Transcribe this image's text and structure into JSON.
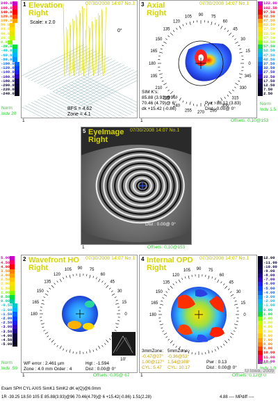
{
  "panels": {
    "elevation": {
      "num": "1",
      "title1": "Elevation",
      "title2": "Right",
      "date": "07/30/2008 14:07 No.1",
      "scale_label": "Scale: x 2.0",
      "zero_deg": "0°",
      "bfs": "BFS = 4.62",
      "zone": "Zone = 4.1",
      "norm": "Norm",
      "indv": "Indv 20",
      "bottom_num": "1",
      "scale_values": [
        "240.0",
        "160.0",
        "140.0",
        "120.0",
        "100.0",
        "80.0",
        "60.0",
        "40.0",
        "20.0",
        "0.0",
        "-20.0",
        "-40.0",
        "-60.0",
        "-80.0",
        "-100.0",
        "-120.0",
        "-140.0",
        "-160.0",
        "-180.0",
        "-200.0",
        "-220.0",
        "-240.0"
      ]
    },
    "axial": {
      "num": "3",
      "title1": "Axial",
      "title2": "Right",
      "date": "07/30/2008 14:07 No.1",
      "angles": [
        "90",
        "105",
        "75",
        "120",
        "60",
        "135",
        "45",
        "150",
        "30",
        "165",
        "15",
        "180",
        "0",
        "195",
        "345",
        "210",
        "330",
        "225",
        "315",
        "240",
        "300",
        "255",
        "270",
        "285"
      ],
      "sim_k": "SIM K's:",
      "k1": "85.88 (3.93)@96°",
      "k2": "70.46 (4.79)@ 6°",
      "dk": "dk +15.42 (-0.86)",
      "pwr": "Pwr : 88.12 (3.83)",
      "dist": "Dist : 0.00@ 0°",
      "norm": "Norm",
      "indv": "Indv 1.5",
      "offsets": "Offsets: 0.10@153",
      "bottom_num": "1",
      "scale_values": [
        "122.00",
        "102.50",
        "97.50",
        "92.50",
        "87.50",
        "82.50",
        "77.50",
        "72.50",
        "67.50",
        "62.50",
        "57.50",
        "52.50",
        "47.50",
        "42.50",
        "37.50",
        "32.50",
        "27.50",
        "22.50",
        "17.50",
        "12.50",
        "7.50",
        "2.50"
      ]
    },
    "eye": {
      "num": "5",
      "title1": "EyeImage",
      "title2": "Right",
      "date": "07/30/2008 14:07 No.1",
      "dist": "Dist : 0.00@ 0°",
      "offsets": "Offsets: 0.10@153",
      "bottom_num": "1"
    },
    "wavefront": {
      "num": "2",
      "title1": "Wavefront HO",
      "title2": "Right",
      "date": "07/30/2008 14:07 No.1",
      "wf_error": "WF error : 2.461 µm",
      "zone_order": "Zone : 4.0 mm Order : 4",
      "hgt": "Hgt : -1.594",
      "dist": "Dist : 0.00@ 0°",
      "thumb_label": "10'",
      "norm": "Norm",
      "indv": "Indv .50",
      "offsets": "Offsets: 0.05@ 67",
      "bottom_num": "1",
      "scale_values": [
        "5.00",
        "4.50",
        "4.00",
        "3.50",
        "3.00",
        "2.50",
        "2.00",
        "1.50",
        "1.00",
        "0.50",
        "0.00",
        "-0.50",
        "-1.00",
        "-1.50",
        "-2.00",
        "-2.50",
        "-3.00",
        "-3.50",
        "-4.00",
        "-4.50",
        "-5.00"
      ]
    },
    "internal": {
      "num": "4",
      "title1": "Internal OPD",
      "title2": "Right",
      "date": "07/30/2008 14:07 No.1",
      "zone3": "3mmZone:",
      "zone5": "5mmZone:",
      "z3a": "-0.47@27°",
      "z5a": "-0.36@53°",
      "z3b": "1.00@117°",
      "z5b": "1.54@108°",
      "z3c": "CYL: 5.47",
      "z5c": "CYL: 10.17",
      "pwr": "Pwr : 0.13",
      "dist": "Dist : 0.00@ 0°",
      "norm": "Norm",
      "indv": "Indv 1.0",
      "offsets": "Offsets: 0.12@ 0",
      "bottom_num": "1",
      "scale_values": [
        "12.00",
        "-11.00",
        "-10.00",
        "-9.00",
        "-8.00",
        "-7.00",
        "-6.00",
        "-5.00",
        "-4.00",
        "-3.00",
        "-2.00",
        "-1.00",
        "0.00",
        "1.00",
        "2.00",
        "3.00",
        "4.00",
        "5.00",
        "6.00",
        "7.00",
        "8.00",
        "9.00",
        "10.00",
        "11.00",
        "12.00"
      ]
    }
  },
  "footer": {
    "header": "Exam  SPH  CYL  AXIS        SimK1              SimK2            dK         e(Q)@6.0mm",
    "row1": "1R  -39.25 18.50 105 E 85.88(3.93)@96    70.46(4.79)@ 6 +15.42(-0.86) 1.51(2.28)",
    "right": "4.88 ---- MPdiff ----",
    "watermark": "U Iowa, 2009"
  },
  "colors": {
    "title": "#d4d400",
    "offsets_green": "#33cc33"
  }
}
